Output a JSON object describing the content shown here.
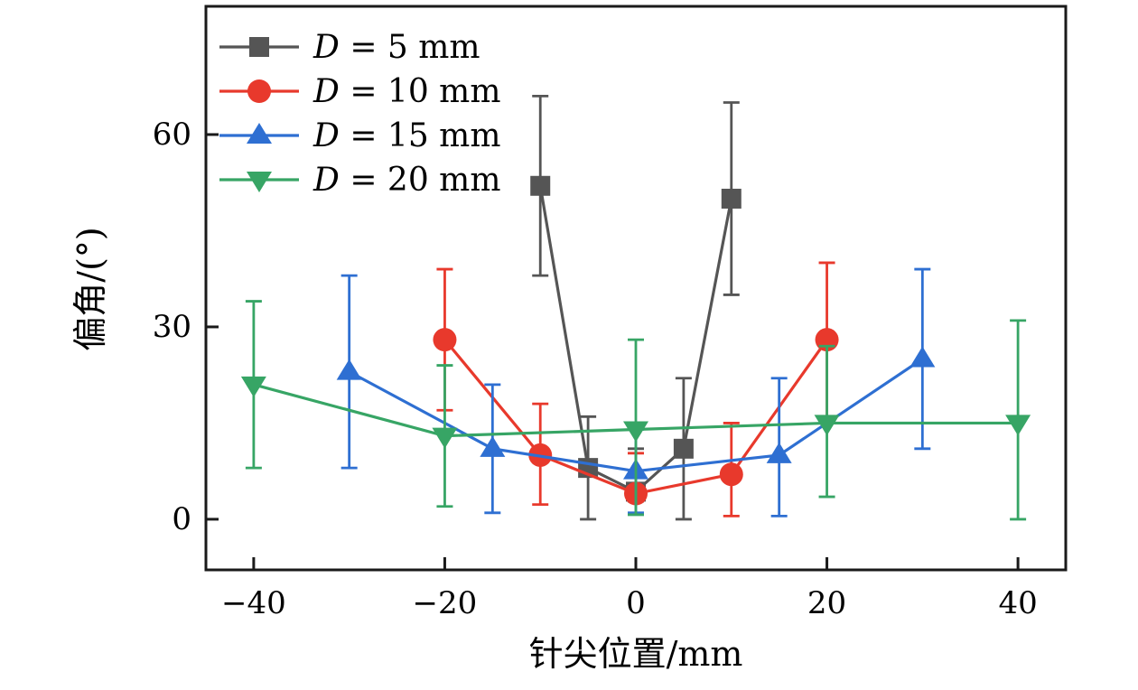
{
  "figure": {
    "background": "#ffffff",
    "frame_color": "#1a1a1a"
  },
  "chart_data": {
    "type": "line",
    "subtype": "errorbar-line",
    "title": "",
    "xlabel": "针尖位置/mm",
    "ylabel": "偏角/(°)",
    "xlim": [
      -45,
      45
    ],
    "ylim": [
      -7.9,
      80
    ],
    "xticks": [
      -40,
      -20,
      0,
      20,
      40
    ],
    "yticks": [
      0,
      30,
      60
    ],
    "grid": false,
    "legend_position": "top-left",
    "legend_frame": false,
    "series": [
      {
        "name": "D = 5 mm",
        "marker": "square",
        "color": "#555555",
        "points": [
          {
            "x": -10,
            "y": 52,
            "err_plus": 14,
            "err_minus": 14
          },
          {
            "x": -5,
            "y": 8,
            "err_plus": 8,
            "err_minus": 8
          },
          {
            "x": 0,
            "y": 4.3,
            "err_plus": 6.7,
            "err_minus": 1.5
          },
          {
            "x": 5,
            "y": 11,
            "err_plus": 11,
            "err_minus": 11
          },
          {
            "x": 10,
            "y": 50,
            "err_plus": 15,
            "err_minus": 15
          }
        ]
      },
      {
        "name": "D = 10 mm",
        "marker": "circle",
        "color": "#e8392c",
        "points": [
          {
            "x": -20,
            "y": 28,
            "err_plus": 11,
            "err_minus": 11
          },
          {
            "x": -10,
            "y": 10,
            "err_plus": 8,
            "err_minus": 7.7
          },
          {
            "x": 0,
            "y": 4,
            "err_plus": 6.3,
            "err_minus": 1
          },
          {
            "x": 10,
            "y": 7,
            "err_plus": 8,
            "err_minus": 6.5
          },
          {
            "x": 20,
            "y": 28,
            "err_plus": 12,
            "err_minus": 12
          }
        ]
      },
      {
        "name": "D = 15 mm",
        "marker": "triangle-up",
        "color": "#2e6fd2",
        "points": [
          {
            "x": -30,
            "y": 23,
            "err_plus": 15,
            "err_minus": 15
          },
          {
            "x": -15,
            "y": 11,
            "err_plus": 10,
            "err_minus": 10
          },
          {
            "x": 0,
            "y": 7.5,
            "err_plus": 6.5,
            "err_minus": 6.5
          },
          {
            "x": 15,
            "y": 10,
            "err_plus": 12,
            "err_minus": 9.5
          },
          {
            "x": 30,
            "y": 25,
            "err_plus": 14,
            "err_minus": 14
          }
        ]
      },
      {
        "name": "D = 20 mm",
        "marker": "triangle-down",
        "color": "#37a565",
        "points": [
          {
            "x": -40,
            "y": 21,
            "err_plus": 13,
            "err_minus": 13
          },
          {
            "x": -20,
            "y": 13,
            "err_plus": 11,
            "err_minus": 11
          },
          {
            "x": 0,
            "y": 14,
            "err_plus": 14,
            "err_minus": 13.3
          },
          {
            "x": 20,
            "y": 15,
            "err_plus": 12,
            "err_minus": 11.5
          },
          {
            "x": 40,
            "y": 15,
            "err_plus": 16,
            "err_minus": 15
          }
        ]
      }
    ]
  }
}
